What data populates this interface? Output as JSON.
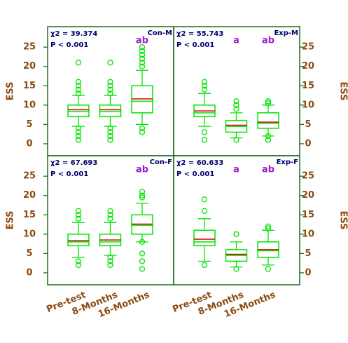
{
  "chart_data": [
    {
      "type": "box",
      "title": "Con-M",
      "annotations": [
        "χ2 = 39.374",
        "P < 0.001"
      ],
      "group_letters": [
        null,
        null,
        "ab"
      ],
      "ylabel": "ESS",
      "ylim": [
        -3.1,
        30.3
      ],
      "yticks": [
        0,
        5,
        10,
        15,
        20,
        25
      ],
      "axis_side": "left",
      "box_color": "#00e600",
      "mean_color": "#d40000",
      "boxes": [
        {
          "whislo": 4.5,
          "q1": 7,
          "med": 8.3,
          "mean": 8.8,
          "q3": 10,
          "whishi": 12.5,
          "fliers": [
            21,
            16,
            15,
            14,
            13,
            4,
            3,
            2,
            1
          ]
        },
        {
          "whislo": 4.5,
          "q1": 7,
          "med": 8.3,
          "mean": 8.8,
          "q3": 10,
          "whishi": 12.5,
          "fliers": [
            21,
            16,
            15,
            14,
            13,
            4,
            3,
            2,
            1
          ]
        },
        {
          "whislo": 5,
          "q1": 8,
          "med": 11,
          "mean": 11.6,
          "q3": 15,
          "whishi": 19,
          "fliers": [
            25,
            24,
            23,
            22,
            21,
            20,
            4,
            3
          ]
        }
      ]
    },
    {
      "type": "box",
      "title": "Exp-M",
      "annotations": [
        "χ2 = 55.743",
        "P < 0.001"
      ],
      "group_letters": [
        null,
        "a",
        "ab"
      ],
      "ylabel": "ESS",
      "ylim": [
        -3.1,
        30.3
      ],
      "yticks": [
        0,
        5,
        10,
        15,
        20,
        25
      ],
      "axis_side": "right",
      "box_color": "#00e600",
      "mean_color": "#d40000",
      "boxes": [
        {
          "whislo": 4.5,
          "q1": 7,
          "med": 8,
          "mean": 8.5,
          "q3": 10,
          "whishi": 13,
          "fliers": [
            16,
            15,
            14,
            3,
            1
          ]
        },
        {
          "whislo": 1.5,
          "q1": 3,
          "med": 4.5,
          "mean": 4.8,
          "q3": 6,
          "whishi": 8,
          "fliers": [
            11,
            10,
            9,
            1
          ]
        },
        {
          "whislo": 2,
          "q1": 4,
          "med": 5.3,
          "mean": 5.6,
          "q3": 8,
          "whishi": 10,
          "fliers": [
            11,
            10.5,
            2,
            1
          ]
        }
      ]
    },
    {
      "type": "box",
      "title": "Con-F",
      "annotations": [
        "χ2 = 67.693",
        "P < 0.001"
      ],
      "group_letters": [
        null,
        null,
        "ab"
      ],
      "ylabel": "ESS",
      "ylim": [
        -3.1,
        30.3
      ],
      "yticks": [
        0,
        5,
        10,
        15,
        20,
        25
      ],
      "axis_side": "left",
      "categories": [
        "Pre-test",
        "8-Months",
        "16-Months"
      ],
      "box_color": "#00e600",
      "mean_color": "#d40000",
      "boxes": [
        {
          "whislo": 4,
          "q1": 7,
          "med": 8,
          "mean": 8.3,
          "q3": 10,
          "whishi": 13,
          "fliers": [
            16,
            15,
            14,
            3,
            2
          ]
        },
        {
          "whislo": 4.5,
          "q1": 7,
          "med": 8,
          "mean": 8.5,
          "q3": 10,
          "whishi": 13,
          "fliers": [
            16,
            15,
            14,
            4,
            3,
            2
          ]
        },
        {
          "whislo": 8,
          "q1": 10,
          "med": 12.3,
          "mean": 12.6,
          "q3": 15,
          "whishi": 18,
          "fliers": [
            21,
            20,
            19.5,
            8,
            5,
            3,
            1
          ]
        }
      ]
    },
    {
      "type": "box",
      "title": "Exp-F",
      "annotations": [
        "χ2 = 60.633",
        "P < 0.001"
      ],
      "group_letters": [
        null,
        "a",
        "ab"
      ],
      "ylabel": "ESS",
      "ylim": [
        -3.1,
        30.3
      ],
      "yticks": [
        0,
        5,
        10,
        15,
        20,
        25
      ],
      "axis_side": "right",
      "categories": [
        "Pre-test",
        "8-Months",
        "16-Months"
      ],
      "box_color": "#00e600",
      "mean_color": "#d40000",
      "boxes": [
        {
          "whislo": 3,
          "q1": 7,
          "med": 8,
          "mean": 8.7,
          "q3": 11,
          "whishi": 14,
          "fliers": [
            19,
            16,
            2
          ]
        },
        {
          "whislo": 1.5,
          "q1": 3,
          "med": 4.5,
          "mean": 4.8,
          "q3": 6,
          "whishi": 8,
          "fliers": [
            10,
            1
          ]
        },
        {
          "whislo": 2,
          "q1": 4,
          "med": 5.7,
          "mean": 6,
          "q3": 8,
          "whishi": 11,
          "fliers": [
            12,
            11.5,
            1
          ]
        }
      ]
    }
  ]
}
